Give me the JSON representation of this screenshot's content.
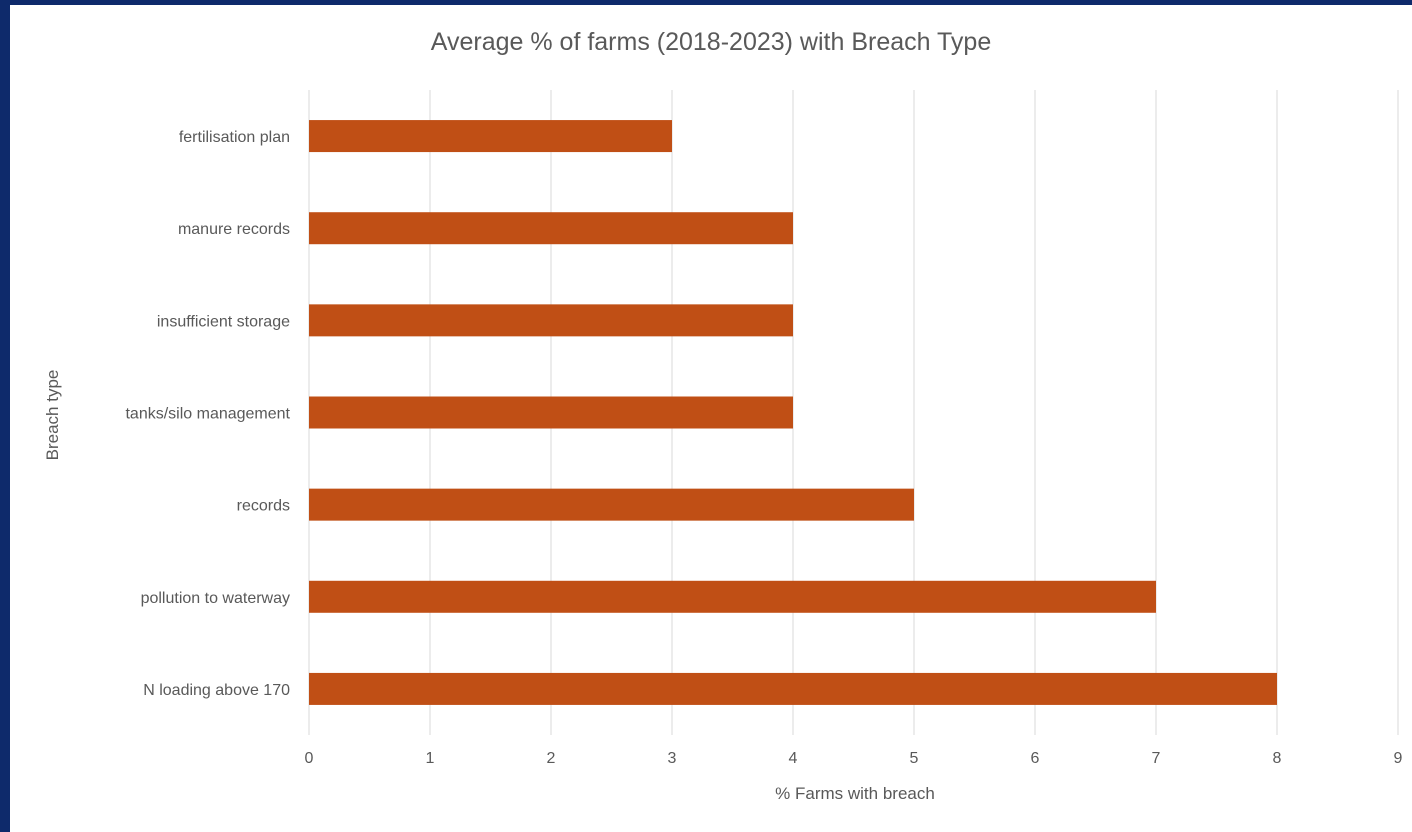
{
  "colors": {
    "background": "#0e2a6b",
    "panel": "#ffffff",
    "bar": "#c04f15",
    "grid": "#d9d9d9",
    "text": "#595959"
  },
  "chart_data": {
    "type": "bar",
    "orientation": "horizontal",
    "title": "Average % of farms (2018-2023) with Breach Type",
    "xlabel": "% Farms with breach",
    "ylabel": "Breach type",
    "categories": [
      "fertilisation plan",
      "manure records",
      "insufficient storage",
      "tanks/silo management",
      "records",
      "pollution to waterway",
      "N loading above 170"
    ],
    "values": [
      3,
      4,
      4,
      4,
      5,
      7,
      8
    ],
    "xlim": [
      0,
      9
    ],
    "xticks": [
      "0",
      "1",
      "2",
      "3",
      "4",
      "5",
      "6",
      "7",
      "8",
      "9"
    ],
    "grid": "vertical",
    "legend": "none"
  }
}
